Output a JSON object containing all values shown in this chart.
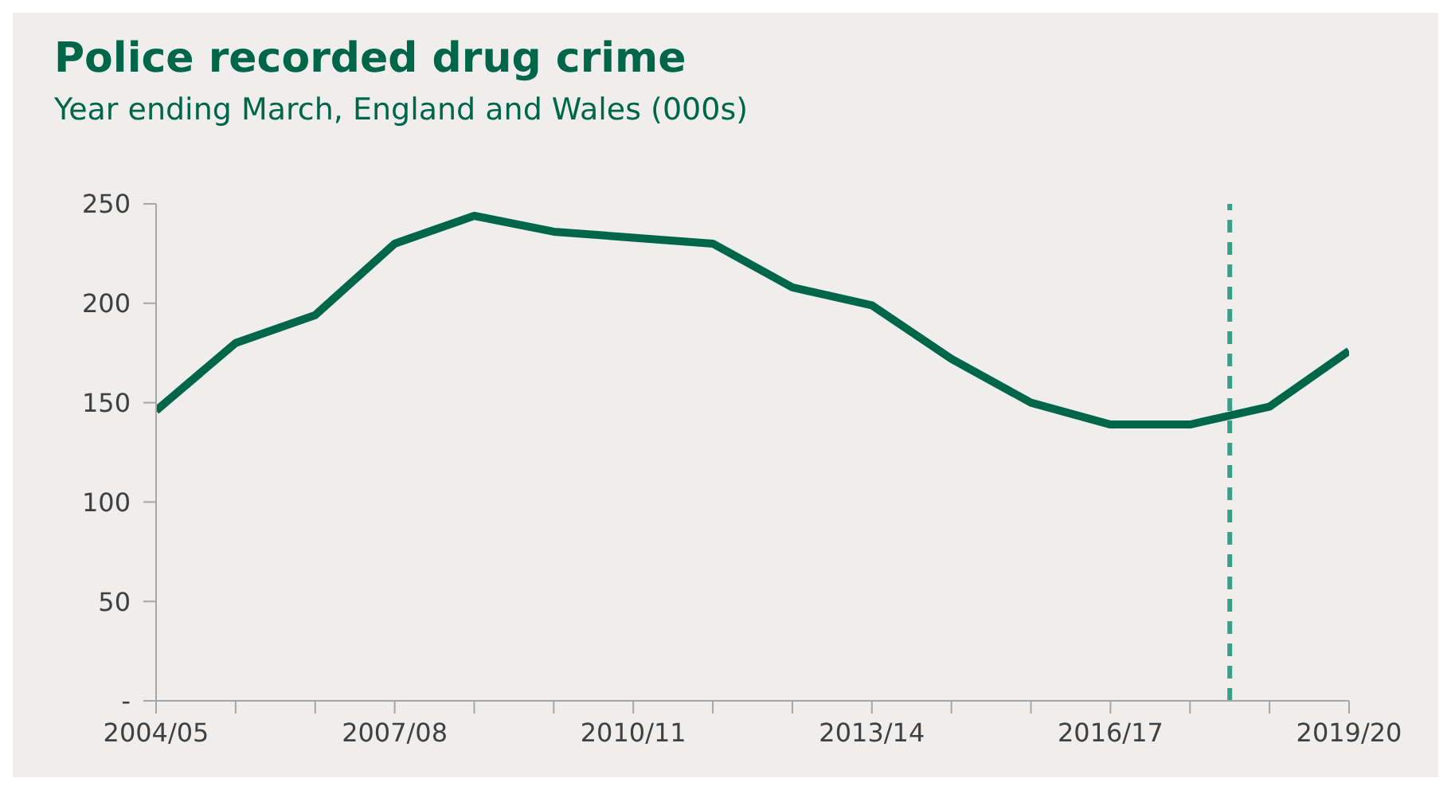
{
  "chart_data": {
    "type": "line",
    "title": "Police recorded drug crime",
    "subtitle": "Year ending March, England and Wales (000s)",
    "categories": [
      "2004/05",
      null,
      null,
      "2007/08",
      null,
      null,
      "2010/11",
      null,
      null,
      "2013/14",
      null,
      null,
      "2016/17",
      null,
      null,
      "2019/20"
    ],
    "series": [
      {
        "color": "#00664a",
        "values": [
          146,
          180,
          194,
          230,
          244,
          236,
          233,
          230,
          208,
          199,
          172,
          150,
          139,
          139,
          148,
          176
        ]
      }
    ],
    "ylim": [
      0,
      250
    ],
    "yticks": [
      {
        "value": 0,
        "label": "-"
      },
      50,
      100,
      150,
      200,
      250
    ],
    "grid": false,
    "legend": false,
    "marker": "none",
    "line_style": "solid"
  }
}
